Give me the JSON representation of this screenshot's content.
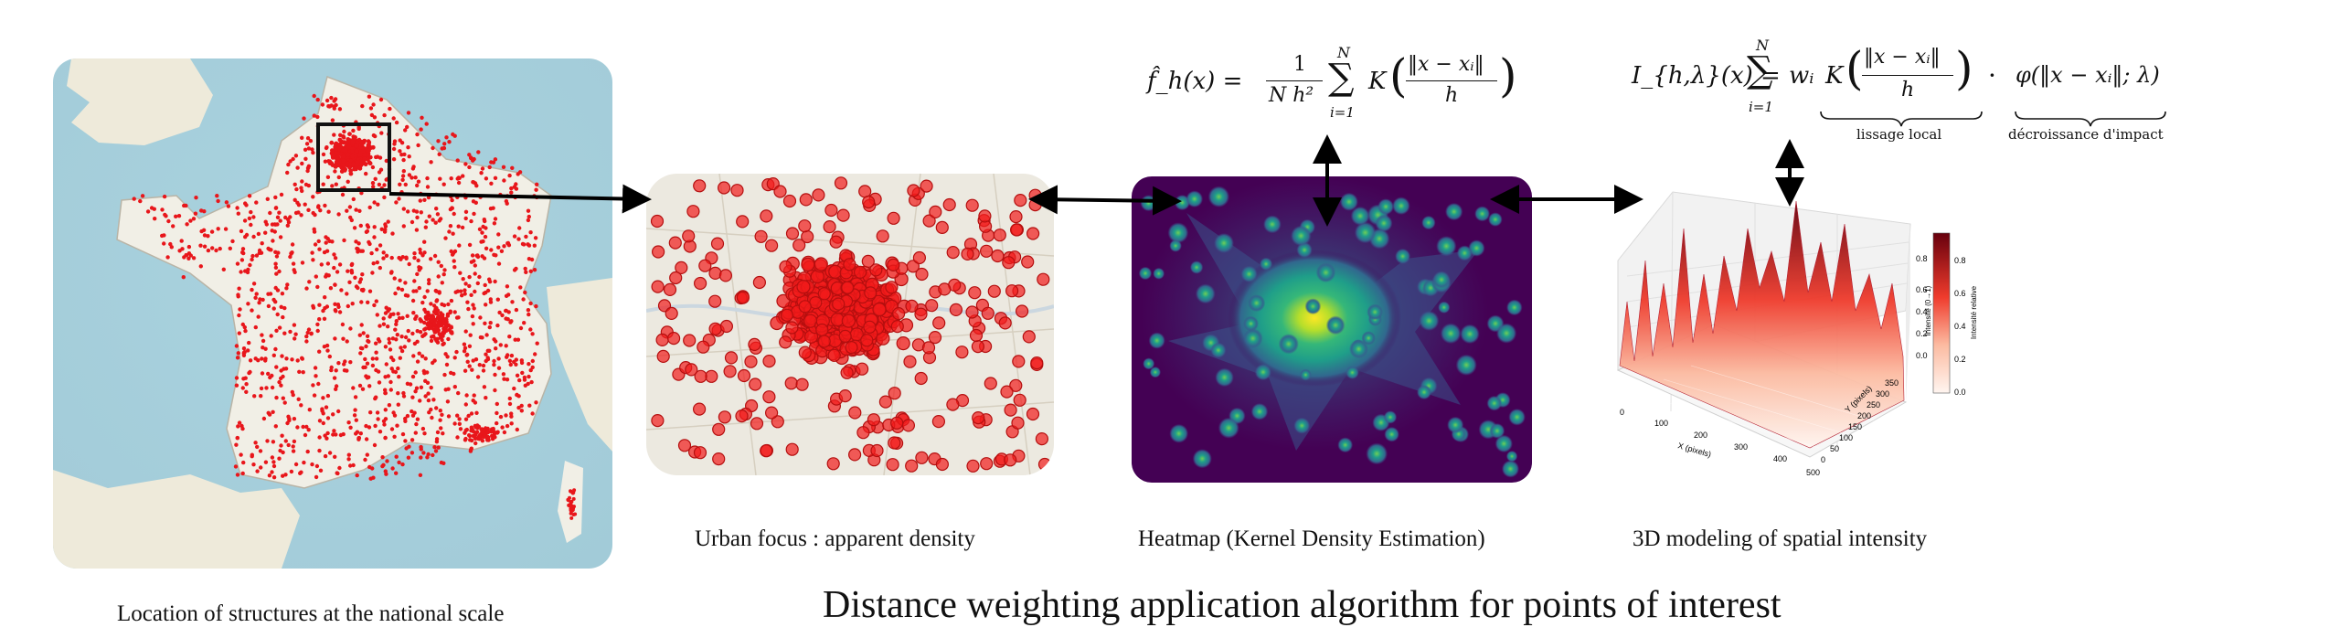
{
  "figure": {
    "main_title": "Distance weighting application algorithm for points of interest",
    "captions": {
      "national": "Location of structures at the national scale",
      "urban": "Urban focus : apparent density",
      "heatmap": "Heatmap (Kernel Density Estimation)",
      "modeling3d": "3D modeling of spatial intensity"
    },
    "formulas": {
      "kde_lhs": "f̂_h(x) =",
      "kde_frac_num": "1",
      "kde_frac_den": "N h²",
      "kde_sum_top": "N",
      "kde_sum_bottom": "i=1",
      "kde_kernel": "K",
      "kde_kernel_num": "‖x − xᵢ‖",
      "kde_kernel_den": "h",
      "intensity_lhs": "I_{h,λ}(x) =",
      "intensity_sum_top": "N",
      "intensity_sum_bottom": "i=1",
      "intensity_weight": "wᵢ",
      "intensity_kernel": "K",
      "intensity_kernel_num": "‖x − xᵢ‖",
      "intensity_kernel_den": "h",
      "intensity_dot": "·",
      "intensity_phi": "φ(‖x − xᵢ‖; λ)",
      "brace_label_left": "lissage local",
      "brace_label_right": "décroissance d'impact"
    },
    "plot3d": {
      "x_axis_label": "X (pixels)",
      "x_ticks": [
        "0",
        "100",
        "200",
        "300",
        "400",
        "500"
      ],
      "y_axis_label": "Y (pixels)",
      "y_ticks": [
        "0",
        "50",
        "100",
        "150",
        "200",
        "250",
        "300",
        "350"
      ],
      "z_axis_label": "Intensité (0→1)",
      "z_ticks": [
        "0.0",
        "0.2",
        "0.4",
        "0.6",
        "0.8"
      ],
      "colorbar_label": "Intensité relative",
      "colorbar_ticks": [
        "0.0",
        "0.2",
        "0.4",
        "0.6",
        "0.8"
      ]
    }
  }
}
